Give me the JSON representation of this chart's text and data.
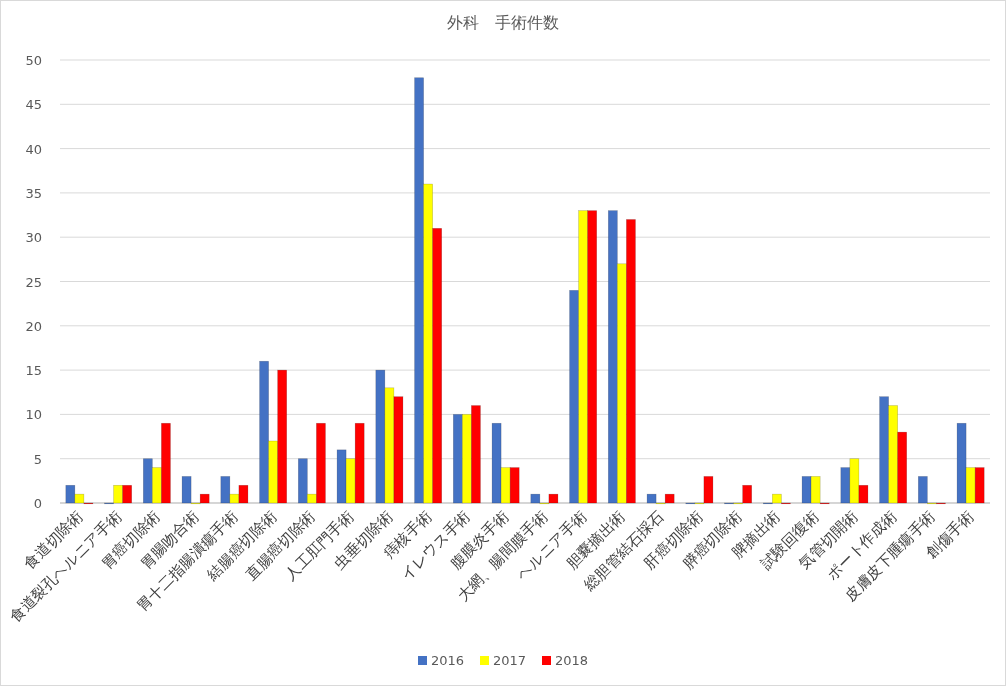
{
  "chart_data": {
    "type": "bar",
    "title": "外科　手術件数",
    "categories": [
      "食道切除術",
      "食道裂孔ヘルニア手術",
      "胃癌切除術",
      "胃腸吻合術",
      "胃十二指腸潰瘍手術",
      "結腸癌切除術",
      "直腸癌切除術",
      "人工肛門手術",
      "虫垂切除術",
      "痔核手術",
      "イレウス手術",
      "腹膜炎手術",
      "大網、腸間膜手術",
      "ヘルニア手術",
      "胆嚢摘出術",
      "総胆管結石採石",
      "肝癌切除術",
      "膵癌切除術",
      "脾摘出術",
      "試験回復術",
      "気管切開術",
      "ポート作成術",
      "皮膚皮下腫瘍手術",
      "創傷手術"
    ],
    "series": [
      {
        "name": "2016",
        "color": "#4472c4",
        "values": [
          2,
          0,
          5,
          3,
          3,
          16,
          5,
          6,
          15,
          48,
          10,
          9,
          1,
          24,
          33,
          1,
          0,
          0,
          0,
          3,
          4,
          12,
          3,
          9
        ]
      },
      {
        "name": "2017",
        "color": "#ffff00",
        "values": [
          1,
          2,
          4,
          0,
          1,
          7,
          1,
          5,
          13,
          36,
          10,
          4,
          0,
          33,
          27,
          0,
          0,
          0,
          1,
          3,
          5,
          11,
          0,
          4
        ]
      },
      {
        "name": "2018",
        "color": "#ff0000",
        "values": [
          0,
          2,
          9,
          1,
          2,
          15,
          9,
          9,
          12,
          31,
          11,
          4,
          1,
          33,
          32,
          1,
          3,
          2,
          0,
          0,
          2,
          8,
          0,
          4
        ]
      }
    ],
    "ylim": [
      0,
      50
    ],
    "yticks": [
      0,
      5,
      10,
      15,
      20,
      25,
      30,
      35,
      40,
      45,
      50
    ],
    "grid": "y",
    "legend": "bottom"
  }
}
